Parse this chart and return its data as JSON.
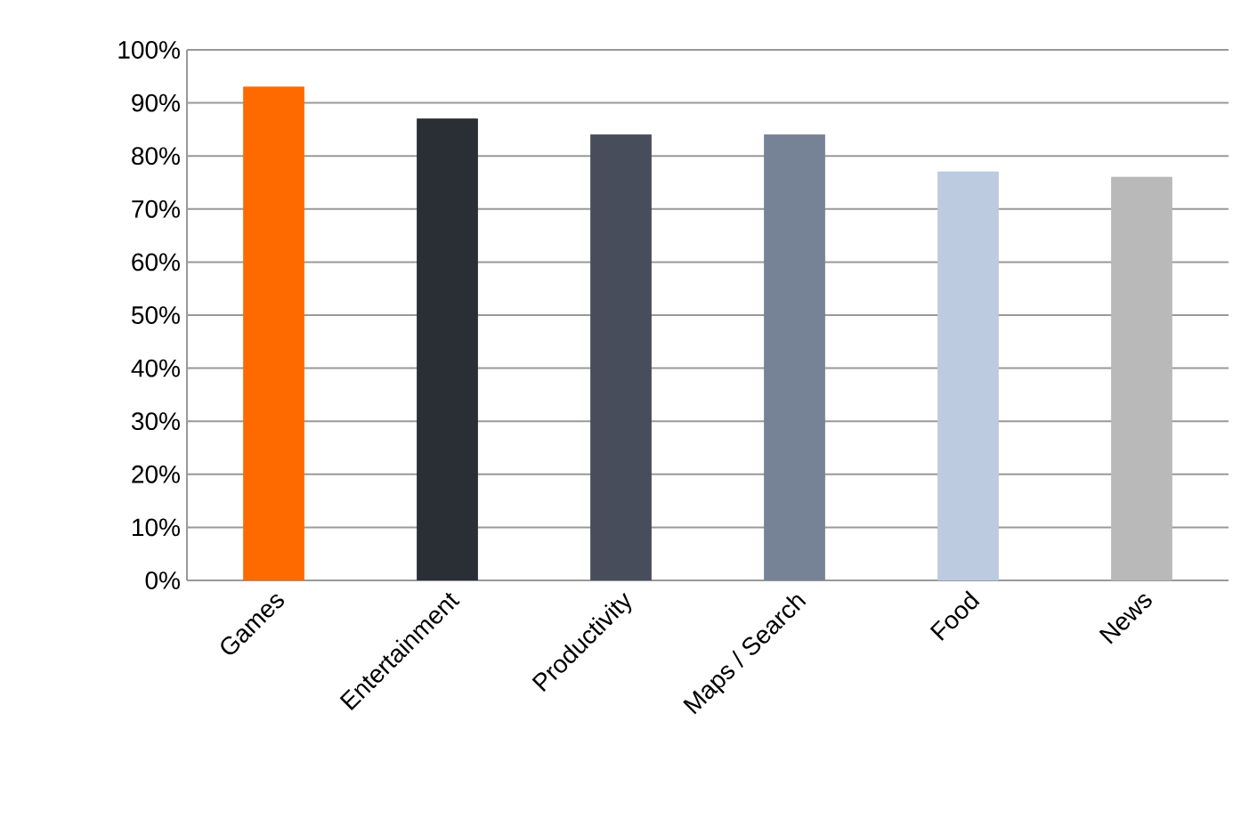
{
  "chart_data": {
    "type": "bar",
    "categories": [
      "Games",
      "Entertainment",
      "Productivity",
      "Maps / Search",
      "Food",
      "News"
    ],
    "values": [
      93,
      87,
      84,
      84,
      77,
      76
    ],
    "colors": [
      "#ff6a00",
      "#2a2f36",
      "#474d5a",
      "#768396",
      "#bccbe0",
      "#b9b9b9"
    ],
    "ylim": [
      0,
      100
    ],
    "yticks": [
      {
        "value": 0,
        "label": "0%"
      },
      {
        "value": 10,
        "label": "10%"
      },
      {
        "value": 20,
        "label": "20%"
      },
      {
        "value": 30,
        "label": "30%"
      },
      {
        "value": 40,
        "label": "40%"
      },
      {
        "value": 50,
        "label": "50%"
      },
      {
        "value": 60,
        "label": "60%"
      },
      {
        "value": 70,
        "label": "70%"
      },
      {
        "value": 80,
        "label": "80%"
      },
      {
        "value": 90,
        "label": "90%"
      },
      {
        "value": 100,
        "label": "100%"
      }
    ],
    "grid": "y"
  }
}
